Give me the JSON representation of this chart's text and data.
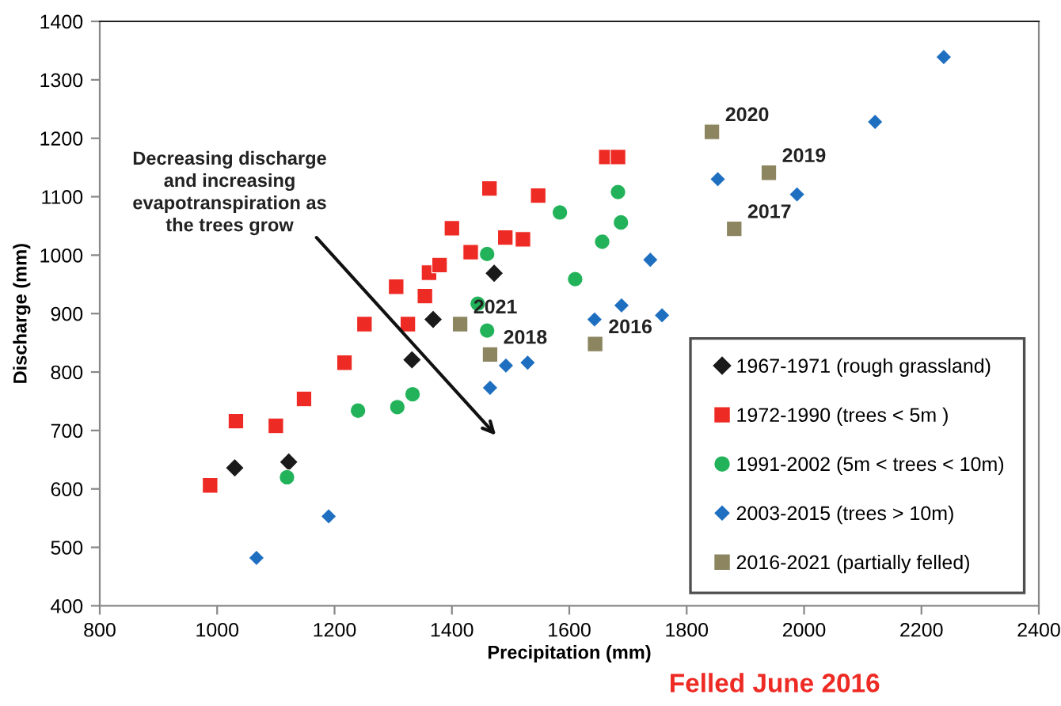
{
  "chart_data": {
    "type": "scatter",
    "xlabel": "Precipitation (mm)",
    "ylabel": "Discharge (mm)",
    "xlim": [
      800,
      2400
    ],
    "xticks": [
      800,
      1000,
      1200,
      1400,
      1600,
      1800,
      2000,
      2200,
      2400
    ],
    "ylim": [
      400,
      1400
    ],
    "yticks": [
      400,
      500,
      600,
      700,
      800,
      900,
      1000,
      1100,
      1200,
      1300,
      1400
    ],
    "grid": false,
    "legend": "bottom right",
    "series": [
      {
        "name": "1967-1971 (rough grassland)",
        "color": "#1a1a1a",
        "marker": "diamond",
        "x": [
          1030,
          1122,
          1332,
          1368,
          1472
        ],
        "values": [
          636,
          646,
          821,
          890,
          969
        ]
      },
      {
        "name": "1972-1990 (trees < 5m )",
        "color": "#ee2a24",
        "marker": "square",
        "x": [
          988,
          1032,
          1100,
          1148,
          1217,
          1251,
          1325,
          1305,
          1354,
          1361,
          1379,
          1400,
          1432,
          1464,
          1491,
          1521,
          1547,
          1663,
          1683
        ],
        "values": [
          606,
          716,
          708,
          754,
          816,
          882,
          882,
          946,
          930,
          970,
          983,
          1046,
          1005,
          1114,
          1030,
          1027,
          1102,
          1168,
          1168
        ]
      },
      {
        "name": "1991-2002 (5m < trees < 10m)",
        "color": "#22b35a",
        "marker": "circle",
        "x": [
          1119,
          1240,
          1307,
          1333,
          1444,
          1460,
          1460,
          1584,
          1610,
          1656,
          1683,
          1688
        ],
        "values": [
          620,
          734,
          740,
          762,
          917,
          871,
          1002,
          1073,
          959,
          1023,
          1108,
          1056
        ]
      },
      {
        "name": "2003-2015 (trees > 10m)",
        "color": "#1f6fc0",
        "marker": "diamond",
        "x": [
          1067,
          1190,
          1465,
          1492,
          1529,
          1643,
          1689,
          1758,
          1738,
          1853,
          1988,
          2121,
          2238
        ],
        "values": [
          482,
          553,
          773,
          811,
          816,
          890,
          914,
          897,
          992,
          1130,
          1104,
          1228,
          1339
        ]
      },
      {
        "name": "2016-2021 (partially felled)",
        "color": "#8c8560",
        "marker": "square",
        "x": [
          1644,
          1881,
          1465,
          1940,
          1843,
          1414
        ],
        "values": [
          848,
          1045,
          830,
          1141,
          1211,
          882
        ]
      }
    ],
    "annotations": [
      {
        "text": "2016",
        "x": 1644,
        "y": 848
      },
      {
        "text": "2017",
        "x": 1881,
        "y": 1045
      },
      {
        "text": "2018",
        "x": 1465,
        "y": 830
      },
      {
        "text": "2019",
        "x": 1940,
        "y": 1141
      },
      {
        "text": "2020",
        "x": 1843,
        "y": 1211
      },
      {
        "text": "2021",
        "x": 1414,
        "y": 882
      },
      "Decreasing discharge\nand increasing\nevapotranspiration as\nthe trees grow",
      "Felled June 2016"
    ]
  }
}
